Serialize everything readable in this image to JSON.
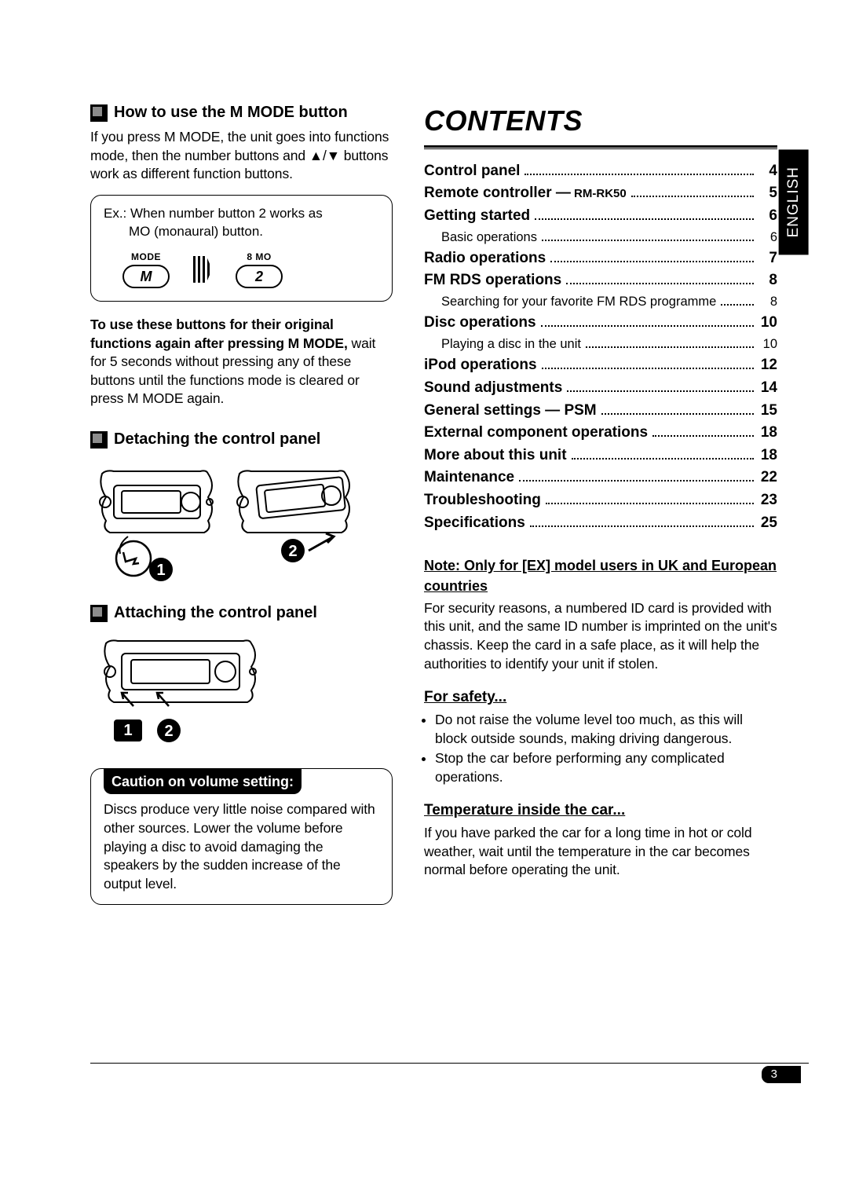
{
  "language_tab": "ENGLISH",
  "left": {
    "sec1": {
      "title": "How to use the M MODE button",
      "para": "If you press M MODE, the unit goes into functions mode, then the number buttons and ▲/▼ buttons work as different function buttons.",
      "example": {
        "line1": "Ex.: When number button 2 works as",
        "line2": "MO (monaural) button.",
        "btn1_label": "MODE",
        "btn1_text": "M",
        "btn2_label": "8  MO",
        "btn2_text": "2"
      },
      "para2_bold": "To use these buttons for their original functions again after pressing M MODE,",
      "para2_rest": " wait for 5 seconds without pressing any of these buttons until the functions mode is cleared or press M MODE again."
    },
    "sec2": {
      "title": "Detaching the control panel"
    },
    "sec3": {
      "title": "Attaching the control panel"
    },
    "caution": {
      "title": "Caution on volume setting:",
      "body": "Discs produce very little noise compared with other sources. Lower the volume before playing a disc to avoid damaging the speakers by the sudden increase of the output level."
    }
  },
  "contents": {
    "title": "CONTENTS",
    "items": [
      {
        "label": "Control panel",
        "page": "4"
      },
      {
        "label": "Remote controller —",
        "suffix": "RM-RK50",
        "page": "5"
      },
      {
        "label": "Getting started",
        "page": "6"
      },
      {
        "label": "Basic operations",
        "page": "6",
        "sub": true
      },
      {
        "label": "Radio operations",
        "page": "7"
      },
      {
        "label": "FM RDS operations",
        "page": "8"
      },
      {
        "label": "Searching for your favorite FM RDS programme",
        "page": "8",
        "sub": true
      },
      {
        "label": "Disc operations",
        "page": "10"
      },
      {
        "label": "Playing a disc in the unit",
        "page": "10",
        "sub": true
      },
      {
        "label": "iPod operations",
        "page": "12"
      },
      {
        "label": "Sound adjustments",
        "page": "14"
      },
      {
        "label": "General settings — PSM",
        "page": "15"
      },
      {
        "label": "External component operations",
        "page": "18"
      },
      {
        "label": "More about this unit",
        "page": "18"
      },
      {
        "label": "Maintenance",
        "page": "22"
      },
      {
        "label": "Troubleshooting",
        "page": "23"
      },
      {
        "label": "Specifications",
        "page": "25"
      }
    ]
  },
  "notes": {
    "note1_head": "Note: Only for [EX] model users in UK and European countries",
    "note1_body": "For security reasons, a numbered ID card is provided with this unit, and the same ID number is imprinted on the unit's chassis. Keep the card in a safe place, as it will help the authorities to identify your unit if stolen.",
    "safety_head": "For safety...",
    "safety_bullets": [
      "Do not raise the volume level too much, as this will block outside sounds, making driving dangerous.",
      "Stop the car before performing any complicated operations."
    ],
    "temp_head": "Temperature inside the car...",
    "temp_body": "If you have parked the car for a long time in hot or cold weather, wait until the temperature in the car becomes normal before operating the unit."
  },
  "page_number": "3"
}
